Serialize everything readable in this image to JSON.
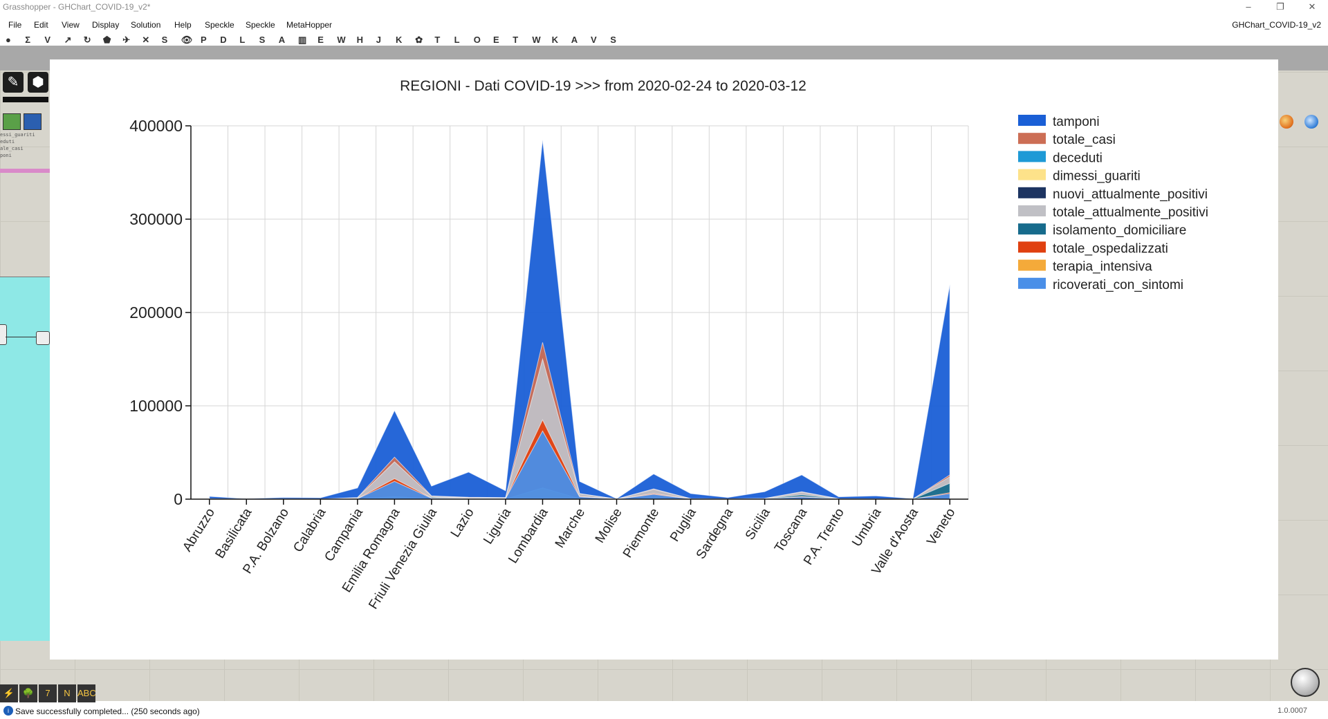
{
  "window": {
    "title": "Grasshopper - GHChart_COVID-19_v2*",
    "controls": [
      "–",
      "❐",
      "✕"
    ]
  },
  "menu": {
    "items": [
      "File",
      "Edit",
      "View",
      "Display",
      "Solution",
      "Help",
      "Speckle",
      "Speckle",
      "MetaHopper"
    ],
    "document_name": "GHChart_COVID-19_v2"
  },
  "toolbar": {
    "items": [
      "●",
      "Σ",
      "V",
      "↗",
      "↻",
      "⬟",
      "✈",
      "✕",
      "S",
      "👁",
      "P",
      "D",
      "L",
      "S",
      "A",
      "▥",
      "E",
      "W",
      "H",
      "J",
      "K",
      "✿",
      "T",
      "L",
      "O",
      "E",
      "T",
      "W",
      "K",
      "A",
      "V",
      "S"
    ]
  },
  "left_panel": {
    "list_items": [
      "essi_guariti",
      "eduti",
      "ale_casi",
      "poni"
    ]
  },
  "chart_data": {
    "type": "area",
    "title": "REGIONI - Dati COVID-19 >>> from 2020-02-24 to 2020-03-12",
    "xlabel": "",
    "ylabel": "",
    "ylim": [
      0,
      400000
    ],
    "yticks": [
      0,
      100000,
      200000,
      300000,
      400000
    ],
    "grid": true,
    "legend_position": "right",
    "categories": [
      "Abruzzo",
      "Basilicata",
      "P.A. Bolzano",
      "Calabria",
      "Campania",
      "Emilia Romagna",
      "Friuli Venezia Giulia",
      "Lazio",
      "Liguria",
      "Lombardia",
      "Marche",
      "Molise",
      "Piemonte",
      "Puglia",
      "Sardegna",
      "Sicilia",
      "Toscana",
      "P.A. Trento",
      "Umbria",
      "Valle d'Aosta",
      "Veneto"
    ],
    "series": [
      {
        "name": "tamponi",
        "color": "#1a5fd6",
        "values": [
          3000,
          500,
          1800,
          1500,
          12000,
          95000,
          14000,
          29000,
          9000,
          385000,
          19000,
          500,
          27000,
          6000,
          1800,
          8000,
          26000,
          2500,
          3500,
          600,
          230000
        ]
      },
      {
        "name": "totale_casi",
        "color": "#cc6e55",
        "values": [
          500,
          20,
          150,
          100,
          1700,
          45000,
          3500,
          2000,
          1700,
          168000,
          6000,
          100,
          11000,
          600,
          300,
          800,
          8000,
          500,
          300,
          100,
          26000
        ]
      },
      {
        "name": "deceduti",
        "color": "#1e9ad6",
        "values": [
          10,
          0,
          5,
          5,
          80,
          3000,
          200,
          100,
          100,
          8000,
          300,
          5,
          500,
          30,
          5,
          30,
          300,
          10,
          10,
          0,
          800
        ]
      },
      {
        "name": "dimessi_guariti",
        "color": "#fde28a",
        "values": [
          30,
          0,
          10,
          5,
          150,
          1500,
          200,
          300,
          200,
          6000,
          20,
          0,
          100,
          20,
          10,
          20,
          200,
          10,
          10,
          0,
          600
        ]
      },
      {
        "name": "nuovi_attualmente_positivi",
        "color": "#1d3461",
        "values": [
          60,
          2,
          20,
          15,
          250,
          4000,
          500,
          300,
          300,
          15000,
          1000,
          20,
          1500,
          100,
          50,
          150,
          1000,
          100,
          50,
          20,
          2500
        ]
      },
      {
        "name": "totale_attualmente_positivi",
        "color": "#c0c0c5",
        "values": [
          450,
          20,
          140,
          90,
          1500,
          40000,
          3200,
          1700,
          1500,
          150000,
          5800,
          95,
          10500,
          560,
          290,
          760,
          7500,
          480,
          290,
          100,
          24000
        ]
      },
      {
        "name": "isolamento_domiciliare",
        "color": "#176b8c",
        "values": [
          250,
          10,
          80,
          50,
          900,
          18000,
          2000,
          900,
          900,
          65000,
          2800,
          50,
          4500,
          300,
          180,
          450,
          4600,
          280,
          180,
          60,
          17000
        ]
      },
      {
        "name": "totale_ospedalizzati",
        "color": "#e04010",
        "values": [
          200,
          10,
          60,
          40,
          600,
          22000,
          1200,
          800,
          600,
          85000,
          3000,
          45,
          6000,
          260,
          110,
          310,
          2900,
          200,
          110,
          40,
          7000
        ]
      },
      {
        "name": "terapia_intensiva",
        "color": "#f4aa3a",
        "values": [
          40,
          2,
          10,
          10,
          150,
          2800,
          250,
          150,
          100,
          12000,
          500,
          10,
          800,
          60,
          20,
          50,
          600,
          40,
          20,
          10,
          1000
        ]
      },
      {
        "name": "ricoverati_con_sintomi",
        "color": "#4a8fe8",
        "values": [
          160,
          8,
          50,
          30,
          450,
          19000,
          950,
          650,
          500,
          73000,
          2500,
          35,
          5200,
          200,
          90,
          260,
          2300,
          160,
          90,
          30,
          6000
        ]
      }
    ]
  },
  "status": {
    "message": "Save successfully completed... (250 seconds ago)",
    "version": "1.0.0007"
  },
  "bottom_tools": [
    "⚡",
    "🌳",
    "7",
    "N",
    "ABC"
  ]
}
